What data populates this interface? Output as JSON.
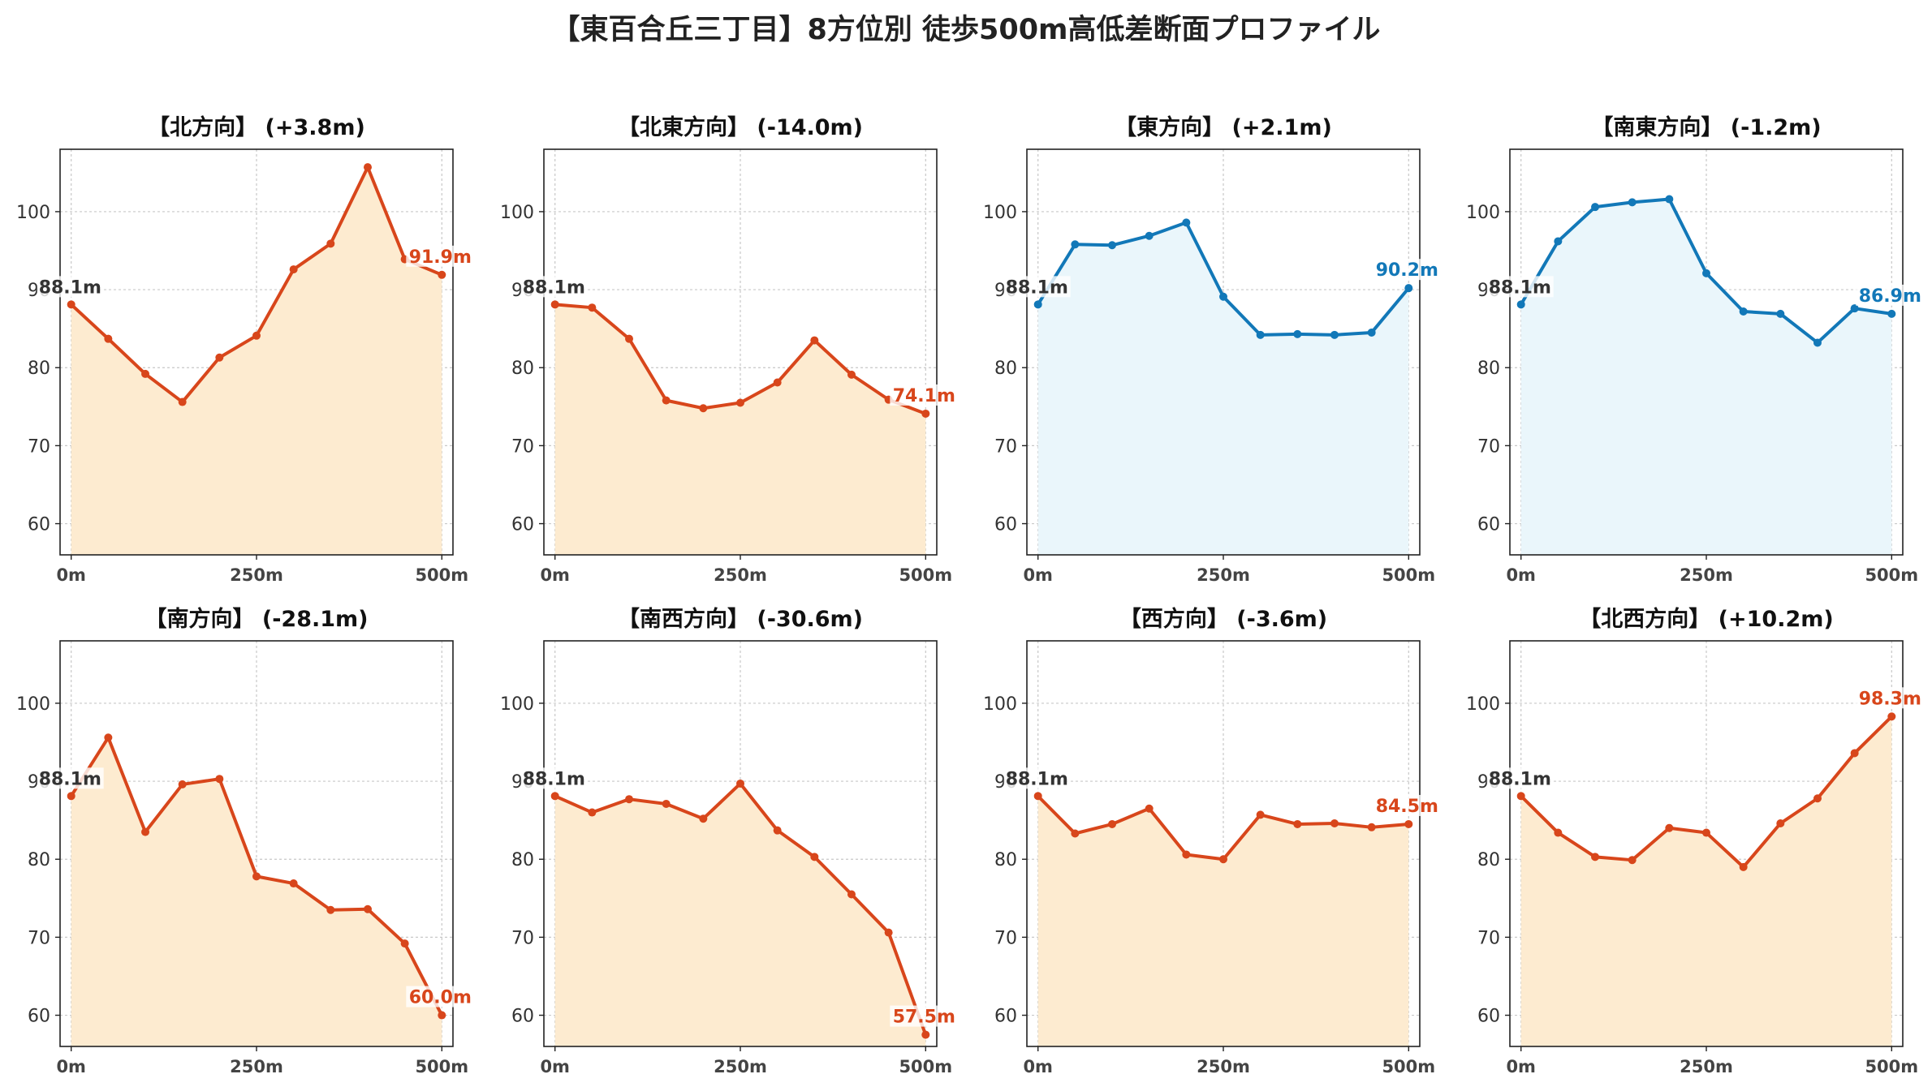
{
  "title": "【東百合丘三丁目】8方位別 徒歩500m高低差断面プロファイル",
  "colors": {
    "up": "#d8461b",
    "up_fill": "#fdebd0",
    "down": "#1278b8",
    "down_fill": "#eaf6fb",
    "start_label": "#333333"
  },
  "chart_data": [
    {
      "type": "line",
      "title": "【北方向】 (+3.8m)",
      "x": [
        0,
        50,
        100,
        150,
        200,
        250,
        300,
        350,
        400,
        450,
        500
      ],
      "values": [
        88.1,
        83.7,
        79.2,
        75.6,
        81.3,
        84.1,
        92.6,
        95.9,
        105.7,
        93.9,
        91.9
      ],
      "start_label": "88.1m",
      "end_label": "91.9m",
      "trend": "up",
      "xticks": [
        "0m",
        "250m",
        "500m"
      ],
      "yticks": [
        "60",
        "70",
        "80",
        "90",
        "100"
      ],
      "ylim": [
        56,
        108
      ],
      "grid": true
    },
    {
      "type": "line",
      "title": "【北東方向】 (-14.0m)",
      "x": [
        0,
        50,
        100,
        150,
        200,
        250,
        300,
        350,
        400,
        450,
        500
      ],
      "values": [
        88.1,
        87.7,
        83.7,
        75.8,
        74.8,
        75.5,
        78.1,
        83.5,
        79.1,
        75.9,
        74.1
      ],
      "start_label": "88.1m",
      "end_label": "74.1m",
      "trend": "up",
      "xticks": [
        "0m",
        "250m",
        "500m"
      ],
      "yticks": [
        "60",
        "70",
        "80",
        "90",
        "100"
      ],
      "ylim": [
        56,
        108
      ],
      "grid": true
    },
    {
      "type": "line",
      "title": "【東方向】 (+2.1m)",
      "x": [
        0,
        50,
        100,
        150,
        200,
        250,
        300,
        350,
        400,
        450,
        500
      ],
      "values": [
        88.1,
        95.8,
        95.7,
        96.9,
        98.6,
        89.1,
        84.2,
        84.3,
        84.2,
        84.5,
        90.2
      ],
      "start_label": "88.1m",
      "end_label": "90.2m",
      "trend": "down",
      "xticks": [
        "0m",
        "250m",
        "500m"
      ],
      "yticks": [
        "60",
        "70",
        "80",
        "90",
        "100"
      ],
      "ylim": [
        56,
        108
      ],
      "grid": true
    },
    {
      "type": "line",
      "title": "【南東方向】 (-1.2m)",
      "x": [
        0,
        50,
        100,
        150,
        200,
        250,
        300,
        350,
        400,
        450,
        500
      ],
      "values": [
        88.1,
        96.2,
        100.6,
        101.2,
        101.6,
        92.1,
        87.2,
        86.9,
        83.2,
        87.6,
        86.9
      ],
      "start_label": "88.1m",
      "end_label": "86.9m",
      "trend": "down",
      "xticks": [
        "0m",
        "250m",
        "500m"
      ],
      "yticks": [
        "60",
        "70",
        "80",
        "90",
        "100"
      ],
      "ylim": [
        56,
        108
      ],
      "grid": true
    },
    {
      "type": "line",
      "title": "【南方向】 (-28.1m)",
      "x": [
        0,
        50,
        100,
        150,
        200,
        250,
        300,
        350,
        400,
        450,
        500
      ],
      "values": [
        88.1,
        95.6,
        83.5,
        89.6,
        90.3,
        77.8,
        76.9,
        73.5,
        73.6,
        69.2,
        60.0
      ],
      "start_label": "88.1m",
      "end_label": "60.0m",
      "trend": "up",
      "xticks": [
        "0m",
        "250m",
        "500m"
      ],
      "yticks": [
        "60",
        "70",
        "80",
        "90",
        "100"
      ],
      "ylim": [
        56,
        108
      ],
      "grid": true
    },
    {
      "type": "line",
      "title": "【南西方向】 (-30.6m)",
      "x": [
        0,
        50,
        100,
        150,
        200,
        250,
        300,
        350,
        400,
        450,
        500
      ],
      "values": [
        88.1,
        86.0,
        87.7,
        87.1,
        85.2,
        89.7,
        83.7,
        80.3,
        75.5,
        70.6,
        57.5
      ],
      "start_label": "88.1m",
      "end_label": "57.5m",
      "trend": "up",
      "xticks": [
        "0m",
        "250m",
        "500m"
      ],
      "yticks": [
        "60",
        "70",
        "80",
        "90",
        "100"
      ],
      "ylim": [
        56,
        108
      ],
      "grid": true
    },
    {
      "type": "line",
      "title": "【西方向】 (-3.6m)",
      "x": [
        0,
        50,
        100,
        150,
        200,
        250,
        300,
        350,
        400,
        450,
        500
      ],
      "values": [
        88.1,
        83.3,
        84.5,
        86.5,
        80.6,
        80.0,
        85.7,
        84.5,
        84.6,
        84.1,
        84.5
      ],
      "start_label": "88.1m",
      "end_label": "84.5m",
      "trend": "up",
      "xticks": [
        "0m",
        "250m",
        "500m"
      ],
      "yticks": [
        "60",
        "70",
        "80",
        "90",
        "100"
      ],
      "ylim": [
        56,
        108
      ],
      "grid": true
    },
    {
      "type": "line",
      "title": "【北西方向】 (+10.2m)",
      "x": [
        0,
        50,
        100,
        150,
        200,
        250,
        300,
        350,
        400,
        450,
        500
      ],
      "values": [
        88.1,
        83.4,
        80.3,
        79.9,
        84.0,
        83.4,
        79.0,
        84.6,
        87.8,
        93.6,
        98.3
      ],
      "start_label": "88.1m",
      "end_label": "98.3m",
      "trend": "up",
      "xticks": [
        "0m",
        "250m",
        "500m"
      ],
      "yticks": [
        "60",
        "70",
        "80",
        "90",
        "100"
      ],
      "ylim": [
        56,
        108
      ],
      "grid": true
    }
  ]
}
